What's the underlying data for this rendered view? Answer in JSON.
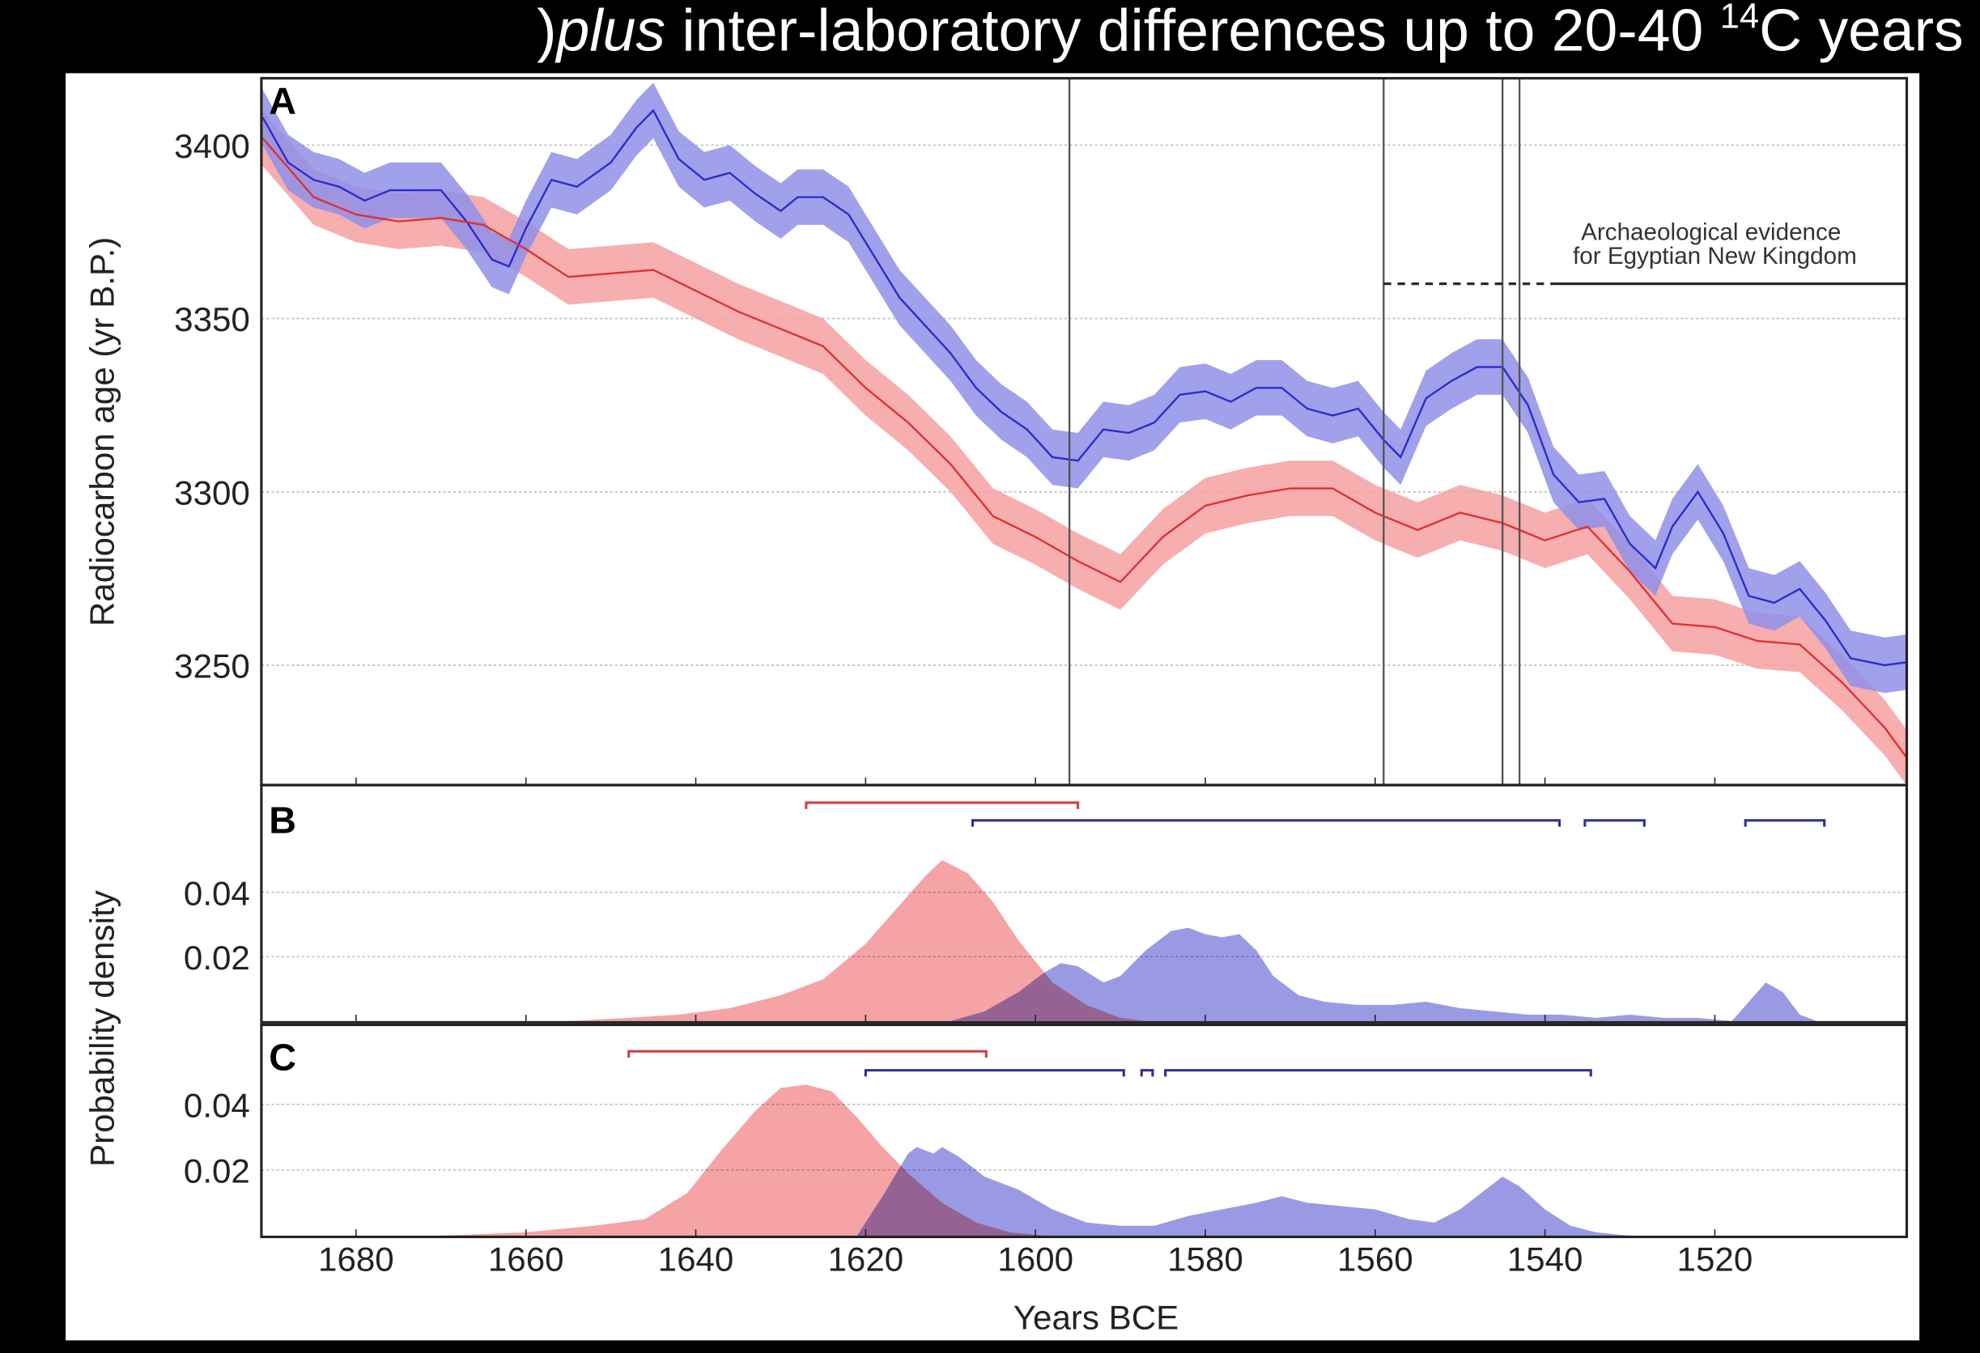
{
  "header": {
    "prefix": ")",
    "italic": "plus",
    "rest": " inter-laboratory differences up to 20-40 ",
    "sup": "14",
    "suffix": "C years"
  },
  "colors": {
    "red_line": "#e03030",
    "red_band": "#f4a0a0",
    "blue_line": "#2a2ad0",
    "blue_band": "#8f8fe8",
    "red_density": "#f59ea0",
    "blue_density": "#8888e0"
  },
  "chart_data": [
    {
      "type": "line",
      "panel_label": "A",
      "ylabel": "Radiocarbon age (yr B.P.)",
      "xlabel": "Years BCE",
      "xlim": [
        1691,
        1497
      ],
      "ylim": [
        3215,
        3419
      ],
      "yticks": [
        3400,
        3350,
        3300,
        3250
      ],
      "grid": true,
      "band_halfwidth": 8,
      "series": [
        {
          "name": "blue",
          "x": [
            1691,
            1688,
            1685,
            1682,
            1679,
            1676,
            1673,
            1670,
            1667,
            1664,
            1662,
            1660,
            1657,
            1654,
            1650,
            1647,
            1645,
            1642,
            1639,
            1636,
            1633,
            1630,
            1628,
            1625,
            1622,
            1619,
            1616,
            1613,
            1610,
            1607,
            1604,
            1601,
            1598,
            1595,
            1592,
            1589,
            1586,
            1583,
            1580,
            1577,
            1574,
            1571,
            1568,
            1565,
            1562,
            1559,
            1557,
            1554,
            1551,
            1548,
            1545,
            1542,
            1539,
            1536,
            1533,
            1530,
            1527,
            1525,
            1522,
            1519,
            1516,
            1513,
            1510,
            1507,
            1504,
            1500,
            1497
          ],
          "y": [
            3408,
            3395,
            3390,
            3388,
            3384,
            3387,
            3387,
            3387,
            3378,
            3367,
            3365,
            3376,
            3390,
            3388,
            3395,
            3405,
            3410,
            3396,
            3390,
            3392,
            3386,
            3381,
            3385,
            3385,
            3380,
            3368,
            3356,
            3348,
            3340,
            3330,
            3323,
            3318,
            3310,
            3309,
            3318,
            3317,
            3320,
            3328,
            3329,
            3326,
            3330,
            3330,
            3324,
            3322,
            3324,
            3315,
            3310,
            3327,
            3332,
            3336,
            3336,
            3325,
            3305,
            3297,
            3298,
            3285,
            3278,
            3290,
            3300,
            3288,
            3270,
            3268,
            3272,
            3263,
            3252,
            3250,
            3251
          ]
        },
        {
          "name": "red",
          "x": [
            1691,
            1685,
            1680,
            1675,
            1670,
            1665,
            1660,
            1655,
            1650,
            1645,
            1640,
            1635,
            1630,
            1625,
            1620,
            1615,
            1610,
            1605,
            1600,
            1595,
            1590,
            1585,
            1580,
            1575,
            1570,
            1565,
            1560,
            1555,
            1550,
            1545,
            1540,
            1535,
            1530,
            1525,
            1520,
            1515,
            1510,
            1505,
            1500,
            1497
          ],
          "y": [
            3402,
            3385,
            3380,
            3378,
            3379,
            3377,
            3370,
            3362,
            3363,
            3364,
            3358,
            3352,
            3347,
            3342,
            3330,
            3320,
            3308,
            3293,
            3287,
            3280,
            3274,
            3287,
            3296,
            3299,
            3301,
            3301,
            3294,
            3289,
            3294,
            3291,
            3286,
            3290,
            3277,
            3262,
            3261,
            3257,
            3256,
            3245,
            3232,
            3222
          ]
        }
      ],
      "vertical_lines": [
        1596,
        1559,
        1545,
        1543
      ],
      "annotation": {
        "line1": "Archaeological evidence",
        "line2": "for Egyptian New Kingdom",
        "level": 3360,
        "dashed_from": 1559,
        "solid_from": 1539
      }
    },
    {
      "type": "area",
      "panel_label": "B",
      "ylabel": "Probability density",
      "ylim": [
        0,
        0.073
      ],
      "yticks": [
        "0.04",
        "0.02"
      ],
      "ytick_values": [
        0.04,
        0.02
      ],
      "series": [
        {
          "name": "red",
          "x": [
            1655,
            1648,
            1642,
            1636,
            1630,
            1625,
            1620,
            1616,
            1613,
            1611,
            1608,
            1605,
            1602,
            1598,
            1594,
            1590,
            1587
          ],
          "y": [
            0,
            0.001,
            0.002,
            0.004,
            0.008,
            0.013,
            0.024,
            0.036,
            0.045,
            0.05,
            0.046,
            0.037,
            0.025,
            0.012,
            0.005,
            0.001,
            0
          ]
        },
        {
          "name": "blue",
          "x": [
            1610,
            1606,
            1602,
            1599,
            1597,
            1595,
            1592,
            1590,
            1587,
            1584,
            1582,
            1580,
            1578,
            1576,
            1574,
            1572,
            1569,
            1566,
            1562,
            1558,
            1554,
            1550,
            1546,
            1542,
            1538,
            1534,
            1530,
            1526,
            1522,
            1518,
            1516,
            1514,
            1512,
            1510,
            1508
          ],
          "y": [
            0,
            0.003,
            0.009,
            0.015,
            0.018,
            0.017,
            0.012,
            0.014,
            0.022,
            0.028,
            0.029,
            0.027,
            0.026,
            0.027,
            0.022,
            0.014,
            0.008,
            0.006,
            0.005,
            0.005,
            0.006,
            0.004,
            0.003,
            0.002,
            0.002,
            0.001,
            0.002,
            0.001,
            0.001,
            0,
            0.006,
            0.012,
            0.009,
            0.002,
            0
          ]
        }
      ],
      "intervals": {
        "red": [
          [
            1627,
            1595
          ]
        ],
        "blue": [
          [
            1607.4,
            1538.3
          ],
          [
            1535.3,
            1528.3
          ],
          [
            1516.4,
            1507.1
          ]
        ]
      }
    },
    {
      "type": "area",
      "panel_label": "C",
      "ylim": [
        0,
        0.064
      ],
      "yticks": [
        "0.04",
        "0.02"
      ],
      "ytick_values": [
        0.04,
        0.02
      ],
      "series": [
        {
          "name": "red",
          "x": [
            1670,
            1660,
            1652,
            1646,
            1641,
            1637,
            1633,
            1630,
            1627,
            1624,
            1621,
            1618,
            1615,
            1611,
            1607,
            1603,
            1599
          ],
          "y": [
            0,
            0.001,
            0.003,
            0.005,
            0.013,
            0.026,
            0.038,
            0.045,
            0.046,
            0.044,
            0.036,
            0.027,
            0.019,
            0.01,
            0.004,
            0.001,
            0
          ]
        },
        {
          "name": "blue",
          "x": [
            1621,
            1618,
            1615,
            1614,
            1612,
            1611,
            1609,
            1606,
            1602,
            1598,
            1594,
            1590,
            1586,
            1582,
            1578,
            1574,
            1571,
            1568,
            1564,
            1560,
            1556,
            1553,
            1550,
            1547,
            1545,
            1543,
            1540,
            1537,
            1534,
            1530
          ],
          "y": [
            0,
            0.012,
            0.025,
            0.027,
            0.025,
            0.027,
            0.024,
            0.018,
            0.014,
            0.008,
            0.004,
            0.003,
            0.003,
            0.006,
            0.008,
            0.01,
            0.012,
            0.01,
            0.009,
            0.008,
            0.005,
            0.004,
            0.008,
            0.014,
            0.018,
            0.015,
            0.008,
            0.003,
            0.001,
            0
          ]
        }
      ],
      "intervals": {
        "red": [
          [
            1647.9,
            1605.8
          ]
        ],
        "blue": [
          [
            1620,
            1589.6
          ],
          [
            1587.5,
            1586.2
          ],
          [
            1584.7,
            1534.6
          ]
        ]
      }
    }
  ],
  "xticks": [
    1680,
    1660,
    1640,
    1620,
    1600,
    1580,
    1560,
    1540,
    1520
  ]
}
